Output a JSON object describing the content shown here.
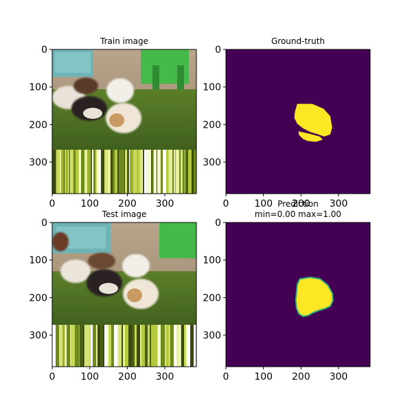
{
  "figure": {
    "background": "#ffffff"
  },
  "panels": [
    {
      "id": "train-image",
      "kind": "photo",
      "title_lines": [
        "Train image"
      ],
      "x_ticks": [
        0,
        100,
        200,
        300
      ],
      "y_ticks": [
        0,
        100,
        200,
        300
      ],
      "extent": [
        0,
        384
      ]
    },
    {
      "id": "ground-truth",
      "kind": "mask",
      "title_lines": [
        "Ground-truth"
      ],
      "x_ticks": [
        0,
        100,
        200,
        300
      ],
      "y_ticks": [
        0,
        100,
        200,
        300
      ],
      "extent": [
        0,
        384
      ],
      "colormap": {
        "background": "#440154",
        "foreground": "#fde725"
      }
    },
    {
      "id": "test-image",
      "kind": "photo",
      "title_lines": [
        "Test image"
      ],
      "x_ticks": [
        0,
        100,
        200,
        300
      ],
      "y_ticks": [
        0,
        100,
        200,
        300
      ],
      "extent": [
        0,
        384
      ]
    },
    {
      "id": "prediction",
      "kind": "mask",
      "title_lines": [
        "Prediction",
        "min=0.00 max=1.00"
      ],
      "x_ticks": [
        0,
        100,
        200,
        300
      ],
      "y_ticks": [
        0,
        100,
        200,
        300
      ],
      "extent": [
        0,
        384
      ],
      "colormap": {
        "background": "#440154",
        "foreground": "#fde725",
        "edge": "#2cb17e"
      },
      "value_range": [
        0.0,
        1.0
      ]
    }
  ],
  "chart_data": [
    {
      "type": "image",
      "title": "Train image",
      "xlim": [
        0,
        384
      ],
      "ylim": [
        384,
        0
      ],
      "xticks": [
        0,
        100,
        200,
        300
      ],
      "yticks": [
        0,
        100,
        200,
        300
      ]
    },
    {
      "type": "heatmap",
      "title": "Ground-truth",
      "xlim": [
        0,
        384
      ],
      "ylim": [
        384,
        0
      ],
      "xticks": [
        0,
        100,
        200,
        300
      ],
      "yticks": [
        0,
        100,
        200,
        300
      ],
      "mask_regions": [
        {
          "label": "main",
          "polygon": [
            [
              190,
              145
            ],
            [
              230,
              145
            ],
            [
              260,
              158
            ],
            [
              278,
              178
            ],
            [
              283,
              208
            ],
            [
              278,
              226
            ],
            [
              262,
              232
            ],
            [
              245,
              226
            ],
            [
              225,
              220
            ],
            [
              205,
              210
            ],
            [
              190,
              198
            ],
            [
              182,
              182
            ],
            [
              184,
              165
            ]
          ]
        },
        {
          "label": "lower",
          "polygon": [
            [
              193,
              218
            ],
            [
              225,
              225
            ],
            [
              250,
              232
            ],
            [
              258,
              240
            ],
            [
              240,
              246
            ],
            [
              218,
              244
            ],
            [
              205,
              238
            ],
            [
              195,
              228
            ]
          ]
        }
      ]
    },
    {
      "type": "image",
      "title": "Test image",
      "xlim": [
        0,
        384
      ],
      "ylim": [
        384,
        0
      ],
      "xticks": [
        0,
        100,
        200,
        300
      ],
      "yticks": [
        0,
        100,
        200,
        300
      ]
    },
    {
      "type": "heatmap",
      "title": "Prediction",
      "subtitle": "min=0.00 max=1.00",
      "xlim": [
        0,
        384
      ],
      "ylim": [
        384,
        0
      ],
      "xticks": [
        0,
        100,
        200,
        300
      ],
      "yticks": [
        0,
        100,
        200,
        300
      ],
      "vmin": 0.0,
      "vmax": 1.0,
      "mask_regions": [
        {
          "label": "main",
          "polygon": [
            [
              198,
              152
            ],
            [
              225,
              148
            ],
            [
              250,
              152
            ],
            [
              270,
              168
            ],
            [
              282,
              190
            ],
            [
              283,
              208
            ],
            [
              276,
              222
            ],
            [
              262,
              228
            ],
            [
              248,
              232
            ],
            [
              232,
              238
            ],
            [
              218,
              246
            ],
            [
              206,
              248
            ],
            [
              196,
              242
            ],
            [
              190,
              228
            ],
            [
              188,
              208
            ],
            [
              190,
              185
            ],
            [
              192,
              165
            ]
          ]
        }
      ]
    }
  ]
}
